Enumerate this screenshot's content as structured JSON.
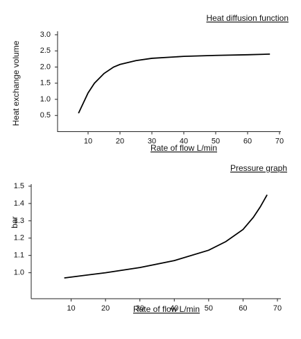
{
  "chart_data": [
    {
      "type": "line",
      "title": "Heat diffusion function",
      "x_label": "Rate of flow L/min",
      "y_label": "Heat exchange volume",
      "x": [
        7,
        10,
        12,
        15,
        18,
        20,
        25,
        30,
        40,
        50,
        60,
        67
      ],
      "series": [
        {
          "name": "Heat exchange volume",
          "color": "#000000",
          "values": [
            0.57,
            1.2,
            1.5,
            1.8,
            2.0,
            2.08,
            2.2,
            2.27,
            2.33,
            2.36,
            2.38,
            2.4
          ]
        }
      ],
      "xlim": [
        0,
        70
      ],
      "ylim": [
        0,
        3
      ],
      "xticks": [
        10,
        20,
        30,
        40,
        50,
        60,
        70
      ],
      "yticks": [
        {
          "value": 0.5,
          "label": "0.5"
        },
        {
          "value": 1,
          "label": "1.0"
        },
        {
          "value": 1.5,
          "label": "1.5"
        },
        {
          "value": 2,
          "label": "2.0"
        },
        {
          "value": 2.5,
          "label": "2.5"
        },
        {
          "value": 3,
          "label": "3.0"
        }
      ]
    },
    {
      "type": "line",
      "title": "Pressure graph",
      "x_label": "Rate of flow L/min",
      "y_label": "bar",
      "x": [
        8,
        20,
        30,
        40,
        50,
        55,
        60,
        63,
        65,
        67
      ],
      "series": [
        {
          "name": "bar",
          "color": "#000000",
          "values": [
            0.97,
            1.0,
            1.03,
            1.07,
            1.13,
            1.18,
            1.25,
            1.32,
            1.38,
            1.45
          ]
        }
      ],
      "xlim": [
        0,
        70
      ],
      "ylim": [
        0.85,
        1.5
      ],
      "xticks": [
        10,
        20,
        30,
        40,
        50,
        60,
        70
      ],
      "yticks": [
        {
          "value": 1,
          "label": "1.0"
        },
        {
          "value": 1.1,
          "label": "1.1"
        },
        {
          "value": 1.2,
          "label": "1.2"
        },
        {
          "value": 1.3,
          "label": "1.3"
        },
        {
          "value": 1.4,
          "label": "1.4"
        },
        {
          "value": 1.5,
          "label": "1.5"
        }
      ]
    }
  ]
}
